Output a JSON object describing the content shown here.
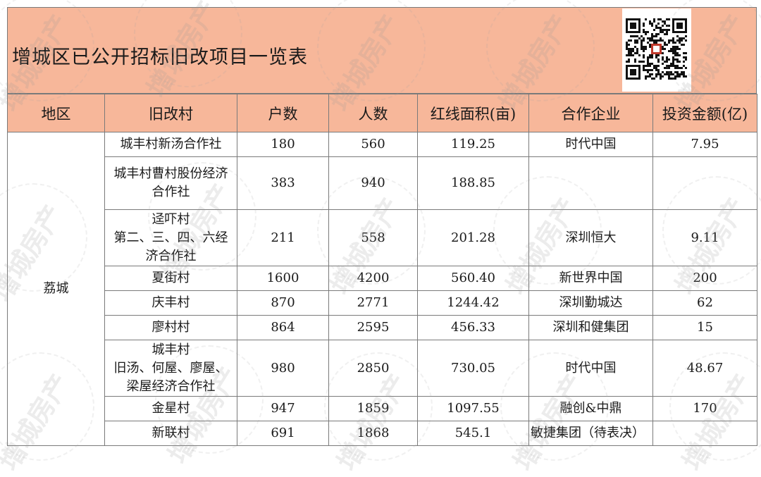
{
  "title": "增城区已公开招标旧改项目一览表",
  "watermark": "增城房产",
  "columns": [
    "地区",
    "旧改村",
    "户数",
    "人数",
    "红线面积(亩)",
    "合作企业",
    "投资金额(亿)"
  ],
  "region": "荔城",
  "rows": [
    {
      "village": [
        "城丰村新汤合作社"
      ],
      "households": "180",
      "people": "560",
      "area": "119.25",
      "company": "时代中国",
      "investment": "7.95"
    },
    {
      "village": [
        "城丰村曹村股份经济",
        "合作社"
      ],
      "households": "383",
      "people": "940",
      "area": "188.85",
      "company": "",
      "investment": ""
    },
    {
      "village": [
        "迳吓村",
        "第二、三、四、六经",
        "济合作社"
      ],
      "households": "211",
      "people": "558",
      "area": "201.28",
      "company": "深圳恒大",
      "investment": "9.11"
    },
    {
      "village": [
        "夏街村"
      ],
      "households": "1600",
      "people": "4200",
      "area": "560.40",
      "company": "新世界中国",
      "investment": "200"
    },
    {
      "village": [
        "庆丰村"
      ],
      "households": "870",
      "people": "2771",
      "area": "1244.42",
      "company": "深圳勤城达",
      "investment": "62"
    },
    {
      "village": [
        "廖村村"
      ],
      "households": "864",
      "people": "2595",
      "area": "456.33",
      "company": "深圳和健集团",
      "investment": "15"
    },
    {
      "village": [
        "城丰村",
        "旧汤、何屋、廖屋、",
        "梁屋经济合作社"
      ],
      "households": "980",
      "people": "2850",
      "area": "730.05",
      "company": "时代中国",
      "investment": "48.67"
    },
    {
      "village": [
        "金星村"
      ],
      "households": "947",
      "people": "1859",
      "area": "1097.55",
      "company": "融创&中鼎",
      "investment": "170"
    },
    {
      "village": [
        "新联村"
      ],
      "households": "691",
      "people": "1868",
      "area": "545.1",
      "company": "敏捷集团（待表决）",
      "investment": ""
    }
  ]
}
